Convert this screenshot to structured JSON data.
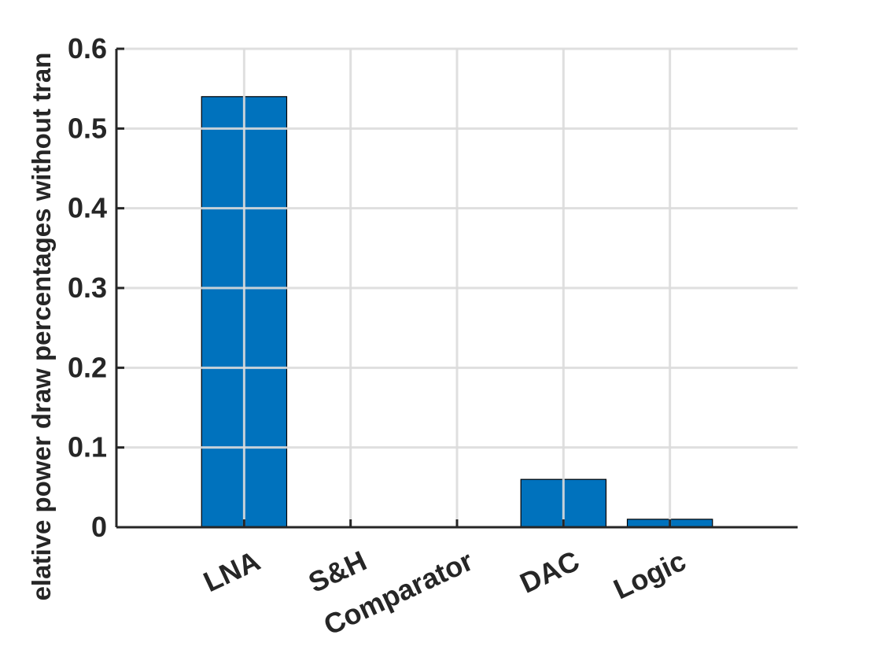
{
  "chart_data": {
    "type": "bar",
    "categories": [
      "LNA",
      "S&H",
      "Comparator",
      "DAC",
      "Logic"
    ],
    "values": [
      0.54,
      0,
      0,
      0.06,
      0.01
    ],
    "title": "",
    "xlabel": "",
    "ylabel": "elative power draw percentages without tran",
    "ylim": [
      0,
      0.6
    ],
    "xlim": [
      -0.2,
      6.2
    ],
    "yticks": [
      0,
      0.1,
      0.2,
      0.3,
      0.4,
      0.5,
      0.6
    ],
    "ytick_labels": [
      "0",
      "0.1",
      "0.2",
      "0.3",
      "0.4",
      "0.5",
      "0.6"
    ],
    "grid": true,
    "bar_color": "#0072BD",
    "axis_color": "#262626",
    "grid_color": "#DCDCDC"
  }
}
